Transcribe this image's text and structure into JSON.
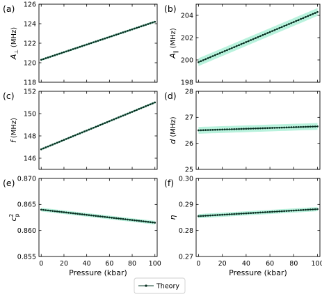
{
  "colors": {
    "line": "#0b3d2b",
    "marker": "#0a2f22",
    "band": "#57e0ad"
  },
  "legend": {
    "label": "Theory"
  },
  "chart_data": [
    {
      "type": "line",
      "panel_label": "(a)",
      "ylabel_main": "A",
      "ylabel_sub": "⊥",
      "ylabel_unit": "(MHz)",
      "xlabel": "",
      "xlim": [
        -2,
        102
      ],
      "ylim": [
        118,
        126
      ],
      "x_ticks": [
        0,
        20,
        40,
        60,
        80,
        100
      ],
      "y_ticks": [
        118,
        120,
        122,
        124,
        126
      ],
      "show_x_tick_labels": false,
      "x_start": 0,
      "x_end": 100,
      "n_points": 51,
      "y_start": 120.3,
      "y_end": 124.2,
      "band": 0.12,
      "grid": false,
      "series": [
        {
          "name": "Theory"
        }
      ]
    },
    {
      "type": "line",
      "panel_label": "(b)",
      "ylabel_main": "A",
      "ylabel_sub": "∥",
      "ylabel_unit": "(MHz)",
      "xlabel": "",
      "xlim": [
        -2,
        102
      ],
      "ylim": [
        198,
        205
      ],
      "x_ticks": [
        0,
        20,
        40,
        60,
        80,
        100
      ],
      "y_ticks": [
        198,
        200,
        202,
        204
      ],
      "show_x_tick_labels": false,
      "x_start": 0,
      "x_end": 100,
      "n_points": 51,
      "y_start": 199.8,
      "y_end": 204.3,
      "band": 0.35,
      "grid": false,
      "series": [
        {
          "name": "Theory"
        }
      ]
    },
    {
      "type": "line",
      "panel_label": "(c)",
      "ylabel_main": "f",
      "ylabel_sub": "",
      "ylabel_unit": "(MHz)",
      "xlabel": "",
      "xlim": [
        -2,
        102
      ],
      "ylim": [
        145,
        152
      ],
      "x_ticks": [
        0,
        20,
        40,
        60,
        80,
        100
      ],
      "y_ticks": [
        146,
        148,
        150,
        152
      ],
      "show_x_tick_labels": false,
      "x_start": 0,
      "x_end": 100,
      "n_points": 51,
      "y_start": 146.8,
      "y_end": 151.0,
      "band": 0.1,
      "grid": false,
      "series": [
        {
          "name": "Theory"
        }
      ]
    },
    {
      "type": "line",
      "panel_label": "(d)",
      "ylabel_main": "d",
      "ylabel_sub": "",
      "ylabel_unit": "(MHz)",
      "xlabel": "",
      "xlim": [
        -2,
        102
      ],
      "ylim": [
        25,
        28
      ],
      "x_ticks": [
        0,
        20,
        40,
        60,
        80,
        100
      ],
      "y_ticks": [
        25,
        26,
        27,
        28
      ],
      "show_x_tick_labels": false,
      "x_start": 0,
      "x_end": 100,
      "n_points": 51,
      "y_start": 26.5,
      "y_end": 26.65,
      "band": 0.13,
      "grid": false,
      "series": [
        {
          "name": "Theory"
        }
      ]
    },
    {
      "type": "line",
      "panel_label": "(e)",
      "ylabel_main": "c",
      "ylabel_sub": "p",
      "ylabel_sup": "2",
      "ylabel_unit": "",
      "xlabel": "Pressure (kbar)",
      "xlim": [
        -2,
        102
      ],
      "ylim": [
        0.855,
        0.87
      ],
      "x_ticks": [
        0,
        20,
        40,
        60,
        80,
        100
      ],
      "y_ticks": [
        0.855,
        0.86,
        0.865,
        0.87
      ],
      "y_tick_labels": [
        "0.855",
        "0.860",
        "0.865",
        "0.870"
      ],
      "show_x_tick_labels": true,
      "x_start": 0,
      "x_end": 100,
      "n_points": 51,
      "y_start": 0.864,
      "y_end": 0.8615,
      "band": 0.00035,
      "grid": false,
      "series": [
        {
          "name": "Theory"
        }
      ]
    },
    {
      "type": "line",
      "panel_label": "(f)",
      "ylabel_main": "η",
      "ylabel_sub": "",
      "ylabel_unit": "",
      "xlabel": "Pressure (kbar)",
      "xlim": [
        -2,
        102
      ],
      "ylim": [
        0.27,
        0.3
      ],
      "x_ticks": [
        0,
        20,
        40,
        60,
        80,
        100
      ],
      "y_ticks": [
        0.27,
        0.28,
        0.29,
        0.3
      ],
      "y_tick_labels": [
        "0.27",
        "0.28",
        "0.29",
        "0.30"
      ],
      "show_x_tick_labels": true,
      "x_start": 0,
      "x_end": 100,
      "n_points": 51,
      "y_start": 0.2855,
      "y_end": 0.2882,
      "band": 0.0008,
      "grid": false,
      "series": [
        {
          "name": "Theory"
        }
      ]
    }
  ]
}
